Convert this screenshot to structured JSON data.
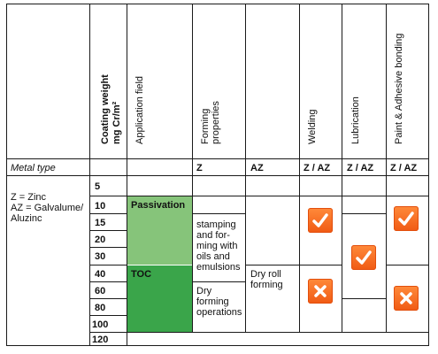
{
  "headers": {
    "coating_weight_line1": "Coating weight",
    "coating_weight_line2": "mg Cr/m²",
    "application_field": "Application field",
    "forming_line1": "Forming",
    "forming_line2": "properties",
    "welding": "Welding",
    "lubrication": "Lubrication",
    "paint": "Paint & Adhesive bonding"
  },
  "metal_type_row": {
    "label": "Metal type",
    "forming_z": "Z",
    "forming_az": "AZ",
    "welding": "Z / AZ",
    "lubrication": "Z / AZ",
    "paint": "Z / AZ"
  },
  "legend": {
    "line1": "Z = Zinc",
    "line2": "AZ = Galvalume/",
    "line3": "Aluzinc"
  },
  "coating_weights": [
    "5",
    "10",
    "15",
    "20",
    "30",
    "40",
    "60",
    "80",
    "100",
    "120"
  ],
  "application_fields": {
    "passivation": "Passivation",
    "toc": "TOC"
  },
  "forming_z_text": {
    "wet": [
      "stamping",
      "and for-",
      "ming with",
      "oils and",
      "emulsions"
    ],
    "dry": [
      "Dry",
      "forming",
      "operations"
    ]
  },
  "forming_az_text": [
    "Dry roll",
    "forming"
  ],
  "colors": {
    "passivation_green": "#86c47a",
    "toc_green": "#3aa54a",
    "badge_orange": "#f26522"
  },
  "icons": {
    "welding_top": "check-icon",
    "welding_bottom": "cross-icon",
    "lubrication": "check-icon",
    "paint_top": "check-icon",
    "paint_bottom": "cross-icon"
  }
}
